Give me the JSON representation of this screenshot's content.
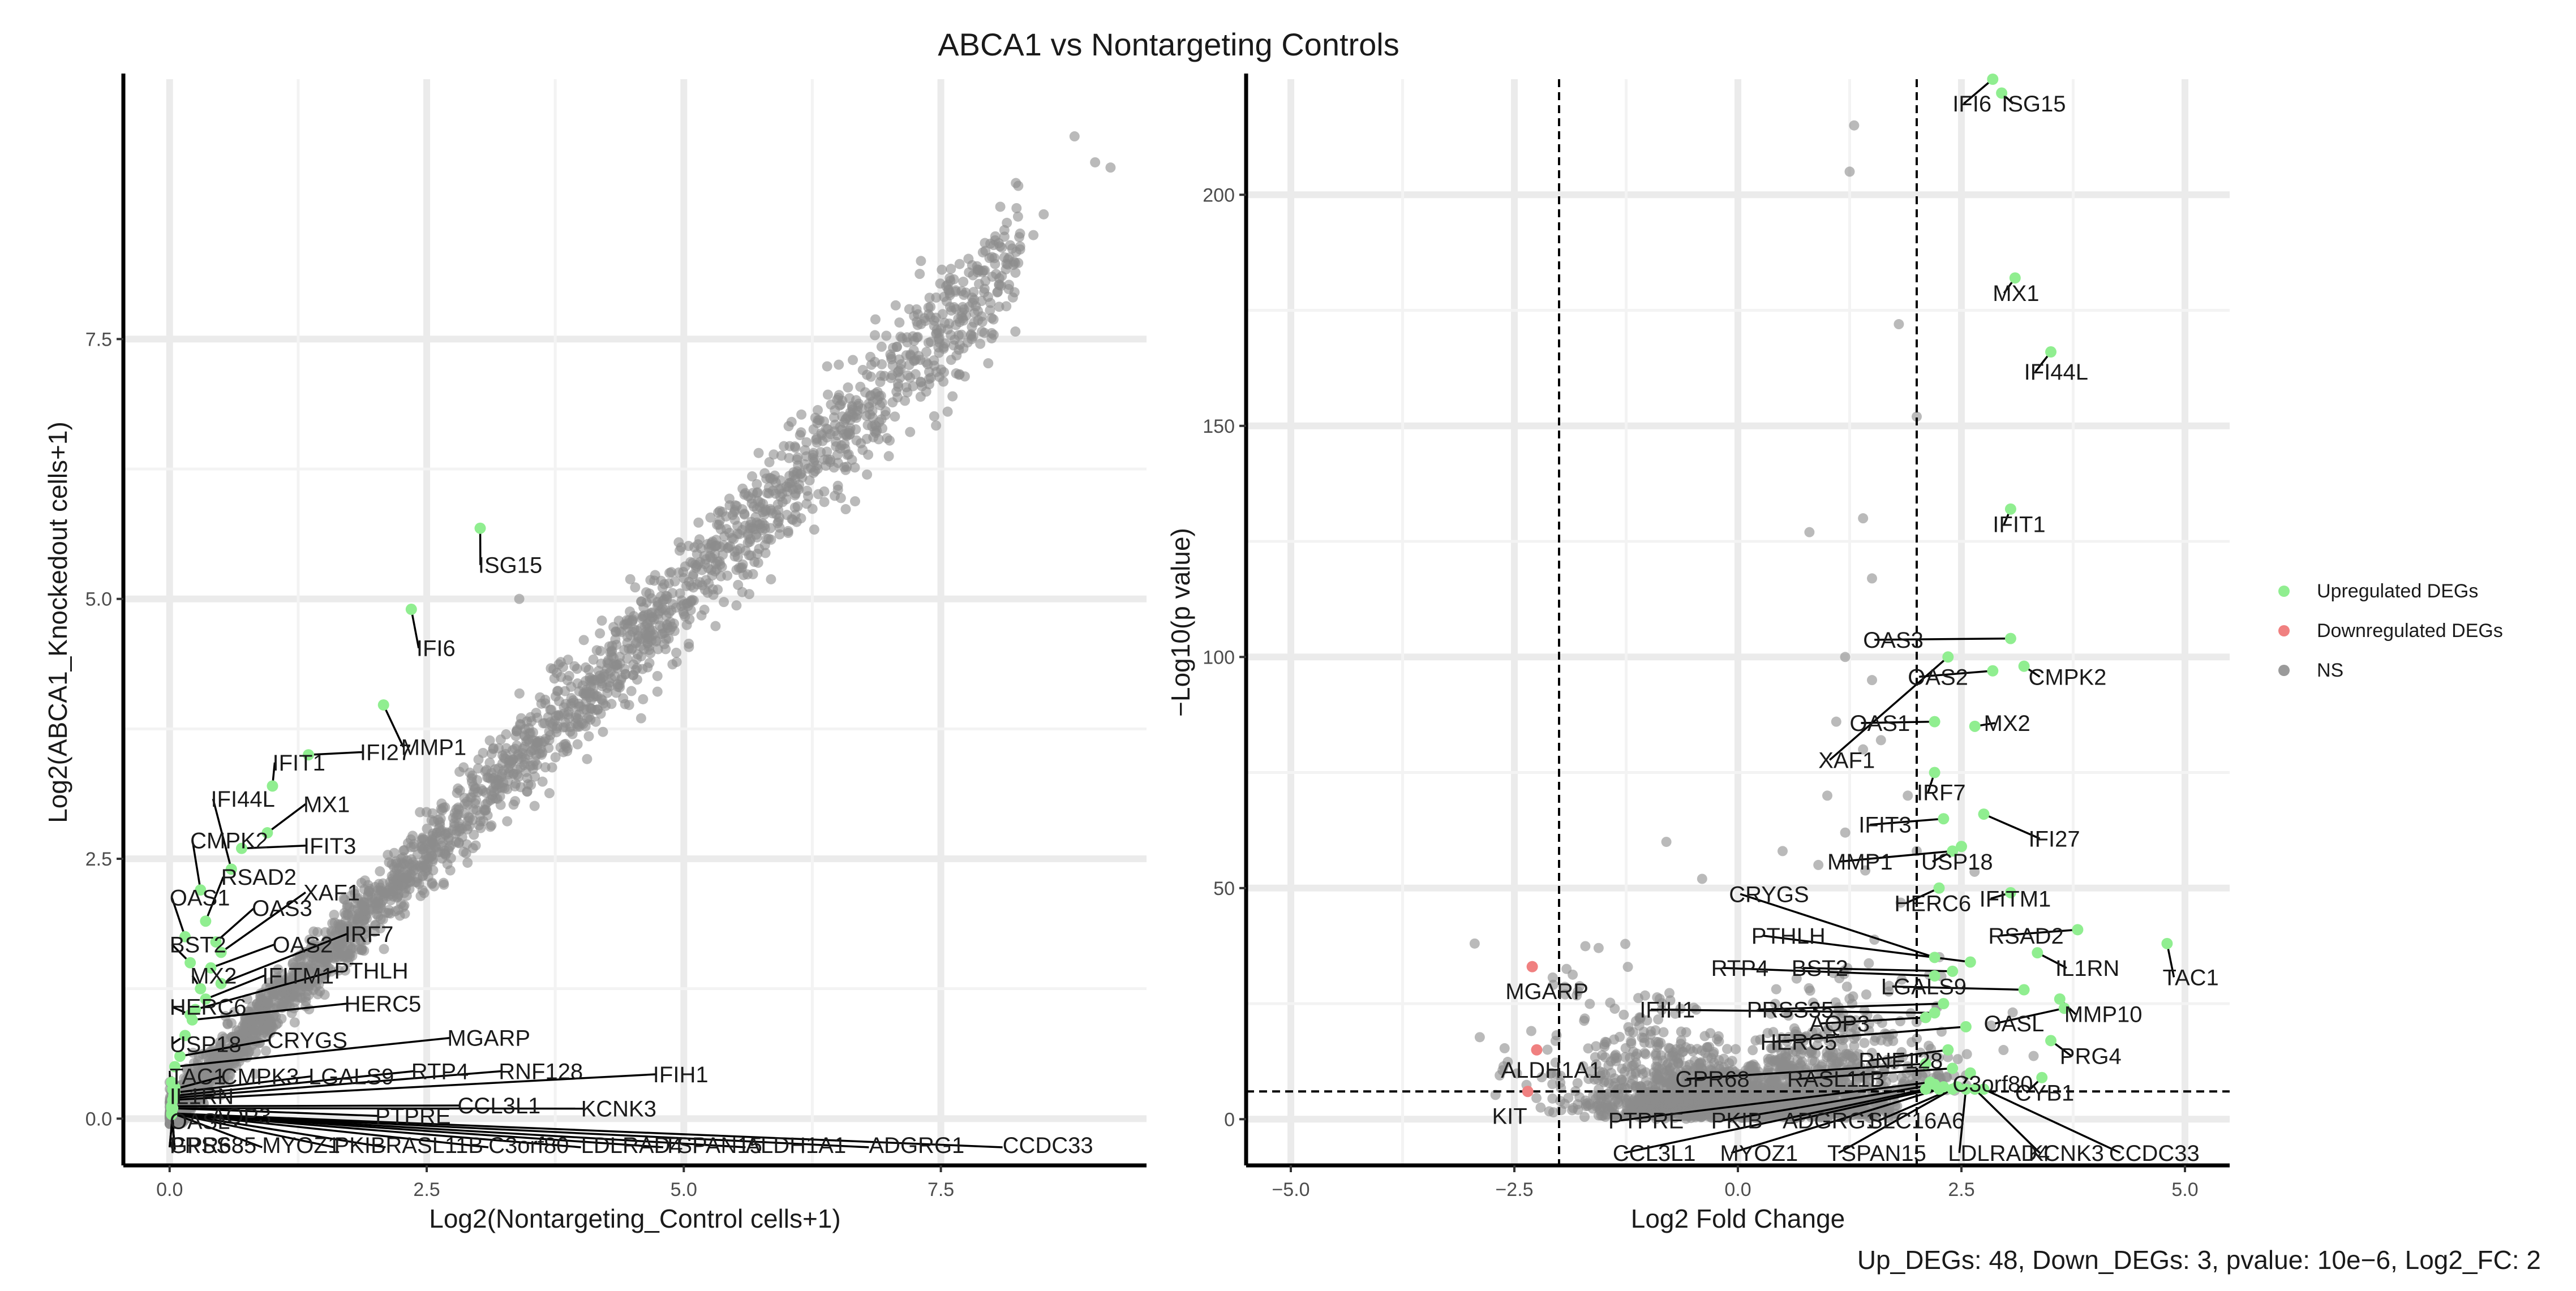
{
  "figure": {
    "title": "ABCA1  vs Nontargeting Controls",
    "caption": "Up_DEGs: 48, Down_DEGs: 3, pvalue: 10e−6, Log2_FC: 2"
  },
  "legend": {
    "entries": [
      {
        "label": "Upregulated DEGs",
        "color": "#90ee90"
      },
      {
        "label": "Downregulated DEGs",
        "color": "#f08080"
      },
      {
        "label": "NS",
        "color": "#9a9a9a"
      }
    ]
  },
  "colors": {
    "up": "#90ee90",
    "down": "#f08080",
    "ns": "#8c8c8c",
    "grid": "#ebebeb"
  },
  "chart_data": [
    {
      "type": "scatter",
      "xlabel": "Log2(Nontargeting_Control cells+1)",
      "ylabel": "Log2(ABCA1_Knockedout cells+1)",
      "xlim": [
        -0.45,
        9.5
      ],
      "ylim": [
        -0.45,
        10.0
      ],
      "xticks": [
        0.0,
        2.5,
        5.0,
        7.5
      ],
      "xtick_labels": [
        "0.0",
        "2.5",
        "5.0",
        "7.5"
      ],
      "yticks": [
        0.0,
        2.5,
        5.0,
        7.5
      ],
      "ytick_labels": [
        "0.0",
        "2.5",
        "5.0",
        "7.5"
      ],
      "grid": true,
      "ns_trend": {
        "x_range": [
          0.0,
          9.0
        ],
        "slope": 1.0,
        "spread": 0.22,
        "n": 2600
      },
      "ns_outliers": [
        [
          8.8,
          9.45
        ],
        [
          9.0,
          9.2
        ],
        [
          9.15,
          9.15
        ],
        [
          8.5,
          8.7
        ],
        [
          8.4,
          8.5
        ],
        [
          8.0,
          8.1
        ],
        [
          8.2,
          7.9
        ],
        [
          7.8,
          7.5
        ],
        [
          7.6,
          7.3
        ],
        [
          7.3,
          7.3
        ],
        [
          6.9,
          6.95
        ],
        [
          6.6,
          6.6
        ],
        [
          5.5,
          5.9
        ],
        [
          5.0,
          5.2
        ],
        [
          3.4,
          5.0
        ],
        [
          1.4,
          1.8
        ],
        [
          1.2,
          1.5
        ]
      ],
      "highlighted": [
        {
          "label": "ISG15",
          "x": 3.02,
          "y": 5.68
        },
        {
          "label": "IFI6",
          "x": 2.35,
          "y": 4.9
        },
        {
          "label": "MMP1",
          "x": 2.08,
          "y": 3.98
        },
        {
          "label": "IFI27",
          "x": 1.35,
          "y": 3.5
        },
        {
          "label": "IFIT1",
          "x": 1.0,
          "y": 3.2
        },
        {
          "label": "MX1",
          "x": 0.95,
          "y": 2.75
        },
        {
          "label": "IFIT3",
          "x": 0.7,
          "y": 2.6
        },
        {
          "label": "IFI44L",
          "x": 0.6,
          "y": 2.4
        },
        {
          "label": "CMPK2",
          "x": 0.3,
          "y": 2.2
        },
        {
          "label": "RSAD2",
          "x": 0.35,
          "y": 1.9
        },
        {
          "label": "XAF1",
          "x": 0.5,
          "y": 1.6
        },
        {
          "label": "OAS1",
          "x": 0.15,
          "y": 1.75
        },
        {
          "label": "OAS3",
          "x": 0.45,
          "y": 1.7
        },
        {
          "label": "BST2",
          "x": 0.2,
          "y": 1.5
        },
        {
          "label": "OAS2",
          "x": 0.4,
          "y": 1.45
        },
        {
          "label": "IRF7",
          "x": 0.5,
          "y": 1.3
        },
        {
          "label": "MX2",
          "x": 0.3,
          "y": 1.25
        },
        {
          "label": "IFITM1",
          "x": 0.35,
          "y": 1.15
        },
        {
          "label": "PTHLH",
          "x": 0.25,
          "y": 1.05
        },
        {
          "label": "HERC6",
          "x": 0.2,
          "y": 1.0
        },
        {
          "label": "HERC5",
          "x": 0.22,
          "y": 0.95
        },
        {
          "label": "USP18",
          "x": 0.15,
          "y": 0.8
        },
        {
          "label": "CRYGS",
          "x": 0.1,
          "y": 0.6
        },
        {
          "label": "MGARP",
          "x": 0.05,
          "y": 0.5
        },
        {
          "label": "TAC1",
          "x": 0.02,
          "y": 0.35
        },
        {
          "label": "IL1RN",
          "x": 0.05,
          "y": 0.3
        },
        {
          "label": "CMPK3",
          "x": 0.03,
          "y": 0.28
        },
        {
          "label": "LGALS9",
          "x": 0.05,
          "y": 0.25
        },
        {
          "label": "RTP4",
          "x": 0.04,
          "y": 0.22
        },
        {
          "label": "RNF128",
          "x": 0.04,
          "y": 0.2
        },
        {
          "label": "IFIH1",
          "x": 0.03,
          "y": 0.18
        },
        {
          "label": "CCL3L1",
          "x": 0.02,
          "y": 0.12
        },
        {
          "label": "KCNK3",
          "x": 0.02,
          "y": 0.1
        },
        {
          "label": "PTPRE",
          "x": 0.03,
          "y": 0.1
        },
        {
          "label": "OASL",
          "x": 0.02,
          "y": 0.05
        },
        {
          "label": "AQP3",
          "x": 0.02,
          "y": 0.04
        }
      ],
      "edge_labels": [
        "GPR68",
        "PRSS35",
        "MYOZ1",
        "PKIB",
        "RASL11B",
        "C3orf80",
        "LDLRAD4",
        "TSPAN15",
        "ALDH1A1",
        "ADGRG1",
        "CCDC33"
      ]
    },
    {
      "type": "scatter",
      "xlabel": "Log2 Fold Change",
      "ylabel": "−Log10(p value)",
      "xlim": [
        -5.5,
        5.5
      ],
      "ylim": [
        -10,
        225
      ],
      "xticks": [
        -5.0,
        -2.5,
        0.0,
        2.5,
        5.0
      ],
      "xtick_labels": [
        "−5.0",
        "−2.5",
        "0.0",
        "2.5",
        "5.0"
      ],
      "yticks": [
        0,
        50,
        100,
        150,
        200
      ],
      "ytick_labels": [
        "0",
        "50",
        "100",
        "150",
        "200"
      ],
      "grid": true,
      "vlines": [
        -2,
        2
      ],
      "hline": 6,
      "ns_cloud": {
        "n": 2400,
        "x_sigma": 1.0,
        "y_scale": 6
      },
      "ns_outliers": [
        [
          1.3,
          215
        ],
        [
          1.25,
          205
        ],
        [
          1.8,
          172
        ],
        [
          2.0,
          152
        ],
        [
          1.5,
          117
        ],
        [
          1.4,
          130
        ],
        [
          0.8,
          127
        ],
        [
          1.2,
          100
        ],
        [
          1.5,
          95
        ],
        [
          1.6,
          82
        ],
        [
          1.1,
          86
        ],
        [
          1.4,
          80
        ],
        [
          1.0,
          70
        ],
        [
          1.2,
          62
        ],
        [
          0.9,
          55
        ],
        [
          0.5,
          58
        ],
        [
          -0.8,
          60
        ],
        [
          -0.4,
          52
        ],
        [
          1.9,
          70
        ],
        [
          2.0,
          58
        ]
      ],
      "up": [
        {
          "label": "IFI6",
          "x": 2.85,
          "y": 225
        },
        {
          "label": "ISG15",
          "x": 2.95,
          "y": 222
        },
        {
          "label": "MX1",
          "x": 3.1,
          "y": 182
        },
        {
          "label": "IFI44L",
          "x": 3.5,
          "y": 166
        },
        {
          "label": "IFIT1",
          "x": 3.05,
          "y": 132
        },
        {
          "label": "OAS3",
          "x": 3.05,
          "y": 104
        },
        {
          "label": "OAS2",
          "x": 2.85,
          "y": 97
        },
        {
          "label": "CMPK2",
          "x": 3.2,
          "y": 98
        },
        {
          "label": "OAS1",
          "x": 2.2,
          "y": 86
        },
        {
          "label": "MX2",
          "x": 2.65,
          "y": 85
        },
        {
          "label": "XAF1",
          "x": 2.35,
          "y": 100
        },
        {
          "label": "IRF7",
          "x": 2.2,
          "y": 75
        },
        {
          "label": "IFIT3",
          "x": 2.3,
          "y": 65
        },
        {
          "label": "IFI27",
          "x": 2.75,
          "y": 66
        },
        {
          "label": "MMP1",
          "x": 2.4,
          "y": 58
        },
        {
          "label": "USP18",
          "x": 2.5,
          "y": 59
        },
        {
          "label": "HERC6",
          "x": 2.25,
          "y": 50
        },
        {
          "label": "IFITM1",
          "x": 3.05,
          "y": 49
        },
        {
          "label": "RSAD2",
          "x": 3.8,
          "y": 41
        },
        {
          "label": "TAC1",
          "x": 4.8,
          "y": 38
        },
        {
          "label": "IL1RN",
          "x": 3.35,
          "y": 36
        },
        {
          "label": "CRYGS",
          "x": 2.2,
          "y": 35
        },
        {
          "label": "PTHLH",
          "x": 2.6,
          "y": 34
        },
        {
          "label": "BST2",
          "x": 2.4,
          "y": 32
        },
        {
          "label": "RTP4",
          "x": 2.2,
          "y": 31
        },
        {
          "label": "LGALS9",
          "x": 3.2,
          "y": 28
        },
        {
          "label": "MMP10",
          "x": 3.6,
          "y": 26
        },
        {
          "label": "OASL",
          "x": 3.65,
          "y": 24
        },
        {
          "label": "PRSS35",
          "x": 2.3,
          "y": 25
        },
        {
          "label": "IFIH1",
          "x": 2.2,
          "y": 23
        },
        {
          "label": "AQP3",
          "x": 2.1,
          "y": 22
        },
        {
          "label": "HERC5",
          "x": 2.55,
          "y": 20
        },
        {
          "label": "PRG4",
          "x": 3.5,
          "y": 17
        },
        {
          "label": "RNF128",
          "x": 2.35,
          "y": 15
        },
        {
          "label": "GPR68",
          "x": 2.1,
          "y": 12
        },
        {
          "label": "RASL11B",
          "x": 2.4,
          "y": 11
        },
        {
          "label": "C3orf80",
          "x": 2.6,
          "y": 10
        },
        {
          "label": "CYB1",
          "x": 3.4,
          "y": 9
        },
        {
          "label": "PTPRE",
          "x": 2.15,
          "y": 8
        },
        {
          "label": "PKIB",
          "x": 2.2,
          "y": 7.5
        },
        {
          "label": "ADGRG1",
          "x": 2.3,
          "y": 7
        },
        {
          "label": "SLC16A6",
          "x": 2.45,
          "y": 7
        },
        {
          "label": "CCL3L1",
          "x": 2.1,
          "y": 6.5
        },
        {
          "label": "MYOZ1",
          "x": 2.25,
          "y": 6.5
        },
        {
          "label": "TSPAN15",
          "x": 2.4,
          "y": 6.5
        },
        {
          "label": "LDLRAD4",
          "x": 2.55,
          "y": 6.5
        },
        {
          "label": "KCNK3",
          "x": 2.65,
          "y": 6.5
        },
        {
          "label": "CCDC33",
          "x": 2.75,
          "y": 6.5
        }
      ],
      "down": [
        {
          "label": "MGARP",
          "x": -2.3,
          "y": 33
        },
        {
          "label": "ALDH1A1",
          "x": -2.25,
          "y": 15
        },
        {
          "label": "KIT",
          "x": -2.35,
          "y": 6
        }
      ]
    }
  ]
}
